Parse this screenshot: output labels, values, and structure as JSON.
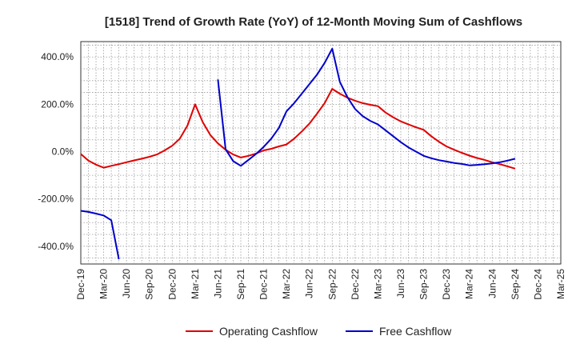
{
  "chart_data": {
    "type": "line",
    "title": "[1518]  Trend of Growth Rate (YoY) of 12-Month Moving Sum of Cashflows",
    "xlabel": "",
    "ylabel": "",
    "x_ticks": [
      "Dec-19",
      "Mar-20",
      "Jun-20",
      "Sep-20",
      "Dec-20",
      "Mar-21",
      "Jun-21",
      "Sep-21",
      "Dec-21",
      "Mar-22",
      "Jun-22",
      "Sep-22",
      "Dec-22",
      "Mar-23",
      "Jun-23",
      "Sep-23",
      "Dec-23",
      "Mar-24",
      "Jun-24",
      "Sep-24",
      "Dec-24",
      "Mar-25"
    ],
    "y_ticks": [
      400,
      200,
      0,
      -200,
      -400
    ],
    "y_tick_labels": [
      "400.0%",
      "200.0%",
      "0.0%",
      "-200.0%",
      "-400.0%"
    ],
    "ylim": [
      -475,
      465
    ],
    "grid": true,
    "legend_position": "bottom",
    "series": [
      {
        "name": "Operating Cashflow",
        "color": "#e00000",
        "points": [
          {
            "x": "Dec-19",
            "y": -10
          },
          {
            "x": "Jan-20",
            "y": -38
          },
          {
            "x": "Feb-20",
            "y": -55
          },
          {
            "x": "Mar-20",
            "y": -68
          },
          {
            "x": "Apr-20",
            "y": -60
          },
          {
            "x": "May-20",
            "y": -53
          },
          {
            "x": "Jun-20",
            "y": -45
          },
          {
            "x": "Jul-20",
            "y": -37
          },
          {
            "x": "Aug-20",
            "y": -30
          },
          {
            "x": "Sep-20",
            "y": -22
          },
          {
            "x": "Oct-20",
            "y": -12
          },
          {
            "x": "Nov-20",
            "y": 5
          },
          {
            "x": "Dec-20",
            "y": 25
          },
          {
            "x": "Jan-21",
            "y": 55
          },
          {
            "x": "Feb-21",
            "y": 110
          },
          {
            "x": "Mar-21",
            "y": 200
          },
          {
            "x": "Apr-21",
            "y": 125
          },
          {
            "x": "May-21",
            "y": 70
          },
          {
            "x": "Jun-21",
            "y": 35
          },
          {
            "x": "Jul-21",
            "y": 8
          },
          {
            "x": "Aug-21",
            "y": -12
          },
          {
            "x": "Sep-21",
            "y": -25
          },
          {
            "x": "Oct-21",
            "y": -18
          },
          {
            "x": "Nov-21",
            "y": -8
          },
          {
            "x": "Dec-21",
            "y": 5
          },
          {
            "x": "Jan-22",
            "y": 12
          },
          {
            "x": "Feb-22",
            "y": 22
          },
          {
            "x": "Mar-22",
            "y": 30
          },
          {
            "x": "Apr-22",
            "y": 55
          },
          {
            "x": "May-22",
            "y": 85
          },
          {
            "x": "Jun-22",
            "y": 118
          },
          {
            "x": "Jul-22",
            "y": 160
          },
          {
            "x": "Aug-22",
            "y": 205
          },
          {
            "x": "Sep-22",
            "y": 265
          },
          {
            "x": "Oct-22",
            "y": 245
          },
          {
            "x": "Nov-22",
            "y": 228
          },
          {
            "x": "Dec-22",
            "y": 215
          },
          {
            "x": "Jan-23",
            "y": 205
          },
          {
            "x": "Feb-23",
            "y": 198
          },
          {
            "x": "Mar-23",
            "y": 192
          },
          {
            "x": "Apr-23",
            "y": 165
          },
          {
            "x": "May-23",
            "y": 145
          },
          {
            "x": "Jun-23",
            "y": 128
          },
          {
            "x": "Jul-23",
            "y": 115
          },
          {
            "x": "Aug-23",
            "y": 103
          },
          {
            "x": "Sep-23",
            "y": 92
          },
          {
            "x": "Oct-23",
            "y": 65
          },
          {
            "x": "Nov-23",
            "y": 42
          },
          {
            "x": "Dec-23",
            "y": 22
          },
          {
            "x": "Jan-24",
            "y": 8
          },
          {
            "x": "Feb-24",
            "y": -5
          },
          {
            "x": "Mar-24",
            "y": -17
          },
          {
            "x": "Apr-24",
            "y": -27
          },
          {
            "x": "May-24",
            "y": -35
          },
          {
            "x": "Jun-24",
            "y": -45
          },
          {
            "x": "Jul-24",
            "y": -53
          },
          {
            "x": "Aug-24",
            "y": -62
          },
          {
            "x": "Sep-24",
            "y": -72
          }
        ]
      },
      {
        "name": "Free Cashflow",
        "color": "#0000cc",
        "segments": [
          [
            {
              "x": "Dec-19",
              "y": -250
            },
            {
              "x": "Jan-20",
              "y": -255
            },
            {
              "x": "Feb-20",
              "y": -262
            },
            {
              "x": "Mar-20",
              "y": -270
            },
            {
              "x": "Apr-20",
              "y": -290
            },
            {
              "x": "May-20",
              "y": -455
            }
          ],
          [
            {
              "x": "Jun-21",
              "y": 305
            },
            {
              "x": "Jul-21",
              "y": 10
            },
            {
              "x": "Aug-21",
              "y": -40
            },
            {
              "x": "Sep-21",
              "y": -60
            },
            {
              "x": "Oct-21",
              "y": -35
            },
            {
              "x": "Nov-21",
              "y": -10
            },
            {
              "x": "Dec-21",
              "y": 20
            },
            {
              "x": "Jan-22",
              "y": 55
            },
            {
              "x": "Feb-22",
              "y": 100
            },
            {
              "x": "Mar-22",
              "y": 170
            },
            {
              "x": "Apr-22",
              "y": 205
            },
            {
              "x": "May-22",
              "y": 245
            },
            {
              "x": "Jun-22",
              "y": 285
            },
            {
              "x": "Jul-22",
              "y": 325
            },
            {
              "x": "Aug-22",
              "y": 375
            },
            {
              "x": "Sep-22",
              "y": 435
            },
            {
              "x": "Oct-22",
              "y": 295
            },
            {
              "x": "Nov-22",
              "y": 230
            },
            {
              "x": "Dec-22",
              "y": 180
            },
            {
              "x": "Jan-23",
              "y": 150
            },
            {
              "x": "Feb-23",
              "y": 130
            },
            {
              "x": "Mar-23",
              "y": 115
            },
            {
              "x": "Apr-23",
              "y": 90
            },
            {
              "x": "May-23",
              "y": 65
            },
            {
              "x": "Jun-23",
              "y": 40
            },
            {
              "x": "Jul-23",
              "y": 18
            },
            {
              "x": "Aug-23",
              "y": 0
            },
            {
              "x": "Sep-23",
              "y": -18
            },
            {
              "x": "Oct-23",
              "y": -28
            },
            {
              "x": "Nov-23",
              "y": -36
            },
            {
              "x": "Dec-23",
              "y": -42
            },
            {
              "x": "Jan-24",
              "y": -48
            },
            {
              "x": "Feb-24",
              "y": -52
            },
            {
              "x": "Mar-24",
              "y": -58
            },
            {
              "x": "Apr-24",
              "y": -56
            },
            {
              "x": "May-24",
              "y": -53
            },
            {
              "x": "Jun-24",
              "y": -50
            },
            {
              "x": "Jul-24",
              "y": -45
            },
            {
              "x": "Aug-24",
              "y": -38
            },
            {
              "x": "Sep-24",
              "y": -30
            }
          ]
        ]
      }
    ]
  }
}
